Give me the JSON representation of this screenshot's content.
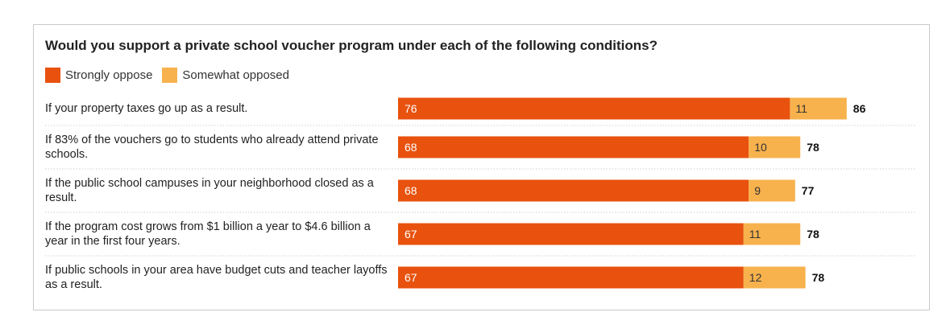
{
  "chart_data": {
    "type": "bar",
    "orientation": "horizontal",
    "stacked": true,
    "title": "Would you support a private school voucher program under each of the following conditions?",
    "legend": [
      "Strongly oppose",
      "Somewhat opposed"
    ],
    "colors": {
      "strongly": "#e8520e",
      "somewhat": "#f7b24d"
    },
    "categories": [
      "If your property taxes go up as a result.",
      "If 83% of the vouchers go to students who already attend private schools.",
      "If the public school campuses in your neighborhood closed as a result.",
      "If the program cost grows from $1 billion a year to $4.6 billion a year in the first four years.",
      "If public schools in your area have budget cuts and teacher layoffs as a result."
    ],
    "series": [
      {
        "name": "Strongly oppose",
        "values": [
          76,
          68,
          68,
          67,
          67
        ]
      },
      {
        "name": "Somewhat opposed",
        "values": [
          11,
          10,
          9,
          11,
          12
        ]
      }
    ],
    "totals": [
      86,
      78,
      77,
      78,
      78
    ],
    "xlim": [
      0,
      100
    ]
  }
}
